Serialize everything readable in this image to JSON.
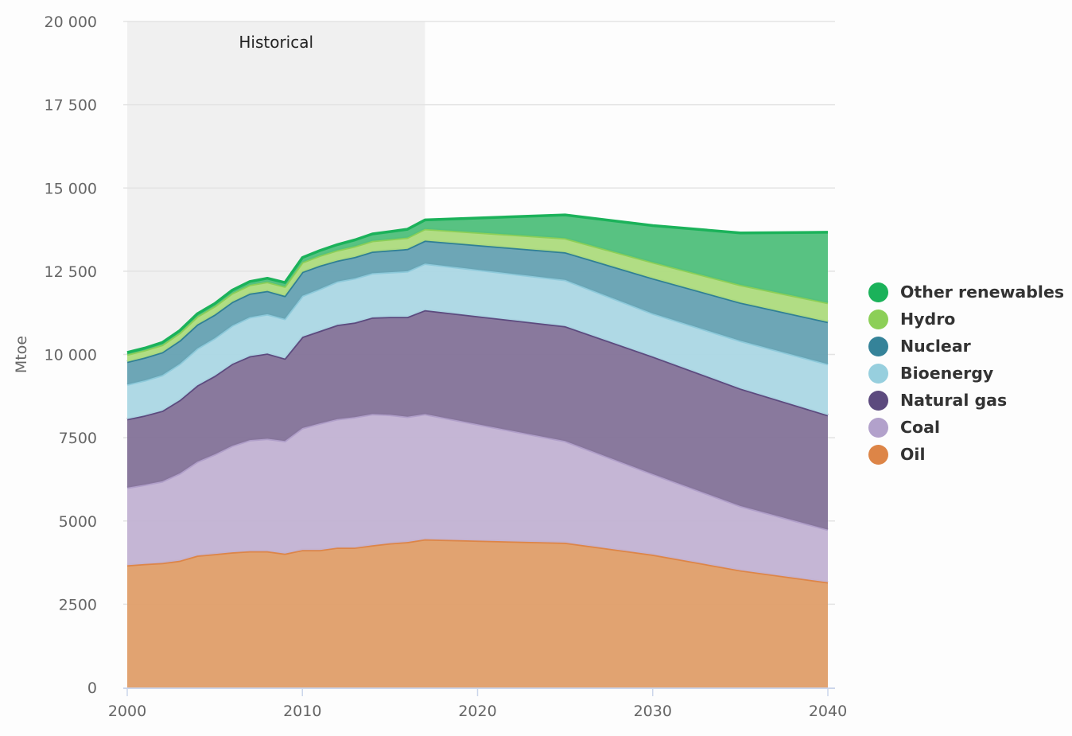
{
  "chart_data": {
    "type": "area",
    "stacked": true,
    "title": "",
    "xlabel": "",
    "ylabel": "Mtoe",
    "ylim": [
      0,
      20000
    ],
    "xlim": [
      2000,
      2040
    ],
    "yticks": [
      0,
      2500,
      5000,
      7500,
      10000,
      12500,
      15000,
      17500,
      20000
    ],
    "ytick_labels": [
      "0",
      "2500",
      "5000",
      "7500",
      "10 000",
      "12 500",
      "15 000",
      "17 500",
      "20 000"
    ],
    "xticks": [
      2000,
      2010,
      2020,
      2030,
      2040
    ],
    "xtick_labels": [
      "2000",
      "2010",
      "2020",
      "2030",
      "2040"
    ],
    "grid": "horizontal",
    "legend_position": "right",
    "annotation": {
      "label": "Historical",
      "x_range": [
        2000,
        2017
      ]
    },
    "x": [
      2000,
      2001,
      2002,
      2003,
      2004,
      2005,
      2006,
      2007,
      2008,
      2009,
      2010,
      2011,
      2012,
      2013,
      2014,
      2015,
      2016,
      2017,
      2025,
      2030,
      2035,
      2040
    ],
    "series": [
      {
        "name": "Oil",
        "color": "#dd8547",
        "fill": "#e0a06c",
        "values": [
          3670,
          3710,
          3740,
          3810,
          3960,
          4010,
          4060,
          4090,
          4090,
          4020,
          4130,
          4130,
          4200,
          4200,
          4270,
          4330,
          4370,
          4450,
          4350,
          3990,
          3520,
          3160
        ]
      },
      {
        "name": "Coal",
        "color": "#b09fc9",
        "fill": "#c3b4d4",
        "values": [
          2330,
          2380,
          2450,
          2620,
          2820,
          2990,
          3200,
          3340,
          3380,
          3380,
          3660,
          3800,
          3860,
          3920,
          3940,
          3860,
          3760,
          3760,
          3050,
          2420,
          1930,
          1580
        ]
      },
      {
        "name": "Natural gas",
        "color": "#5c4a7e",
        "fill": "#85759a",
        "values": [
          2060,
          2080,
          2120,
          2200,
          2290,
          2360,
          2460,
          2520,
          2560,
          2480,
          2740,
          2780,
          2830,
          2840,
          2900,
          2940,
          3000,
          3120,
          3450,
          3530,
          3530,
          3440
        ]
      },
      {
        "name": "Bioenergy",
        "color": "#8ecadb",
        "fill": "#acd8e4",
        "values": [
          1040,
          1050,
          1070,
          1090,
          1110,
          1130,
          1150,
          1170,
          1180,
          1190,
          1230,
          1260,
          1300,
          1330,
          1330,
          1340,
          1370,
          1400,
          1390,
          1290,
          1430,
          1530
        ]
      },
      {
        "name": "Nuclear",
        "color": "#2f7f95",
        "fill": "#68a3b4",
        "values": [
          680,
          690,
          690,
          700,
          720,
          710,
          710,
          710,
          700,
          690,
          720,
          700,
          630,
          640,
          650,
          660,
          670,
          690,
          830,
          1060,
          1150,
          1270
        ]
      },
      {
        "name": "Hydro",
        "color": "#8ccf57",
        "fill": "#aedc80",
        "values": [
          220,
          220,
          220,
          230,
          240,
          250,
          260,
          260,
          270,
          280,
          290,
          300,
          310,
          320,
          320,
          330,
          340,
          350,
          420,
          480,
          530,
          570
        ]
      },
      {
        "name": "Other renewables",
        "color": "#1bb25a",
        "fill": "#53c07e",
        "values": [
          60,
          60,
          70,
          70,
          80,
          80,
          90,
          100,
          110,
          120,
          140,
          150,
          170,
          190,
          210,
          230,
          250,
          270,
          700,
          1100,
          1560,
          2120
        ]
      }
    ]
  },
  "legend": {
    "items": [
      {
        "label": "Other renewables",
        "color": "#1bb25a"
      },
      {
        "label": "Hydro",
        "color": "#8ccf57"
      },
      {
        "label": "Nuclear",
        "color": "#358399"
      },
      {
        "label": "Bioenergy",
        "color": "#97cfde"
      },
      {
        "label": "Natural gas",
        "color": "#5c4a7e"
      },
      {
        "label": "Coal",
        "color": "#b2a1cb"
      },
      {
        "label": "Oil",
        "color": "#dd8547"
      }
    ]
  }
}
